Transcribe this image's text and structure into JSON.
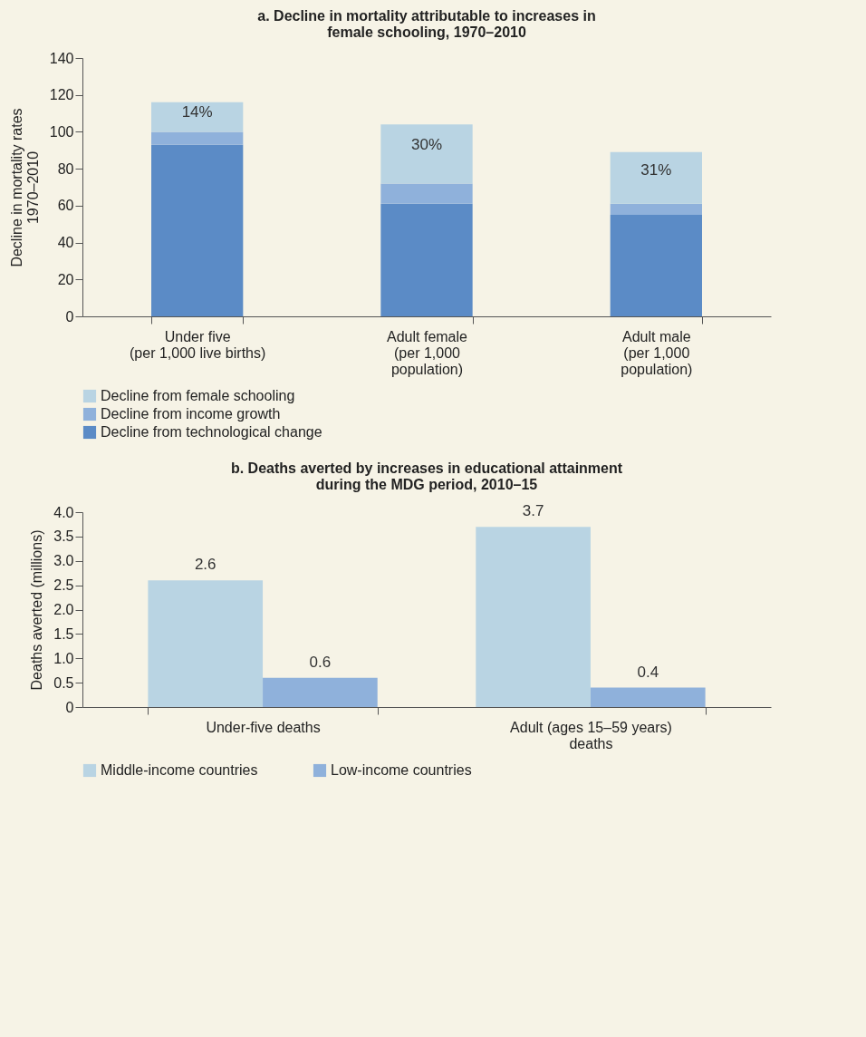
{
  "chart_data": [
    {
      "type": "bar",
      "stacked": true,
      "title": "a. Decline in mortality attributable to increases in\nfemale schooling, 1970–2010",
      "ylabel": "Decline in mortality rates\n1970–2010",
      "categories": [
        "Under five\n(per 1,000 live births)",
        "Adult female\n(per 1,000\npopulation)",
        "Adult male\n(per 1,000\npopulation)"
      ],
      "series": [
        {
          "name": "Decline from technological change",
          "color": "#5b8bc6",
          "values": [
            93,
            61,
            55
          ]
        },
        {
          "name": "Decline from income growth",
          "color": "#8fb1db",
          "values": [
            7,
            11,
            6
          ]
        },
        {
          "name": "Decline from female schooling",
          "color": "#b9d4e3",
          "values": [
            16,
            32,
            28
          ]
        }
      ],
      "annotations": [
        "14%",
        "30%",
        "31%"
      ],
      "ylim": [
        0,
        140
      ],
      "yticks": [
        0,
        20,
        40,
        60,
        80,
        100,
        120,
        140
      ],
      "legend": "bottom"
    },
    {
      "type": "bar",
      "title": "b. Deaths averted by increases in educational attainment\nduring the MDG period, 2010–15",
      "ylabel": "Deaths averted (millions)",
      "categories": [
        "Under-five deaths",
        "Adult (ages 15–59 years)\ndeaths"
      ],
      "series": [
        {
          "name": "Middle-income countries",
          "color": "#b9d4e3",
          "values": [
            2.6,
            3.7
          ]
        },
        {
          "name": "Low-income countries",
          "color": "#8fb1db",
          "values": [
            0.6,
            0.4
          ]
        }
      ],
      "ylim": [
        0,
        4
      ],
      "yticks": [
        {
          "value": 0,
          "label": "0"
        },
        0.5,
        {
          "value": 1,
          "label": "1.0"
        },
        1.5,
        {
          "value": 2,
          "label": "2.0"
        },
        2.5,
        {
          "value": 3,
          "label": "3.0"
        },
        3.5,
        {
          "value": 4,
          "label": "4.0"
        }
      ],
      "data_labels": true,
      "legend": "bottom"
    }
  ]
}
